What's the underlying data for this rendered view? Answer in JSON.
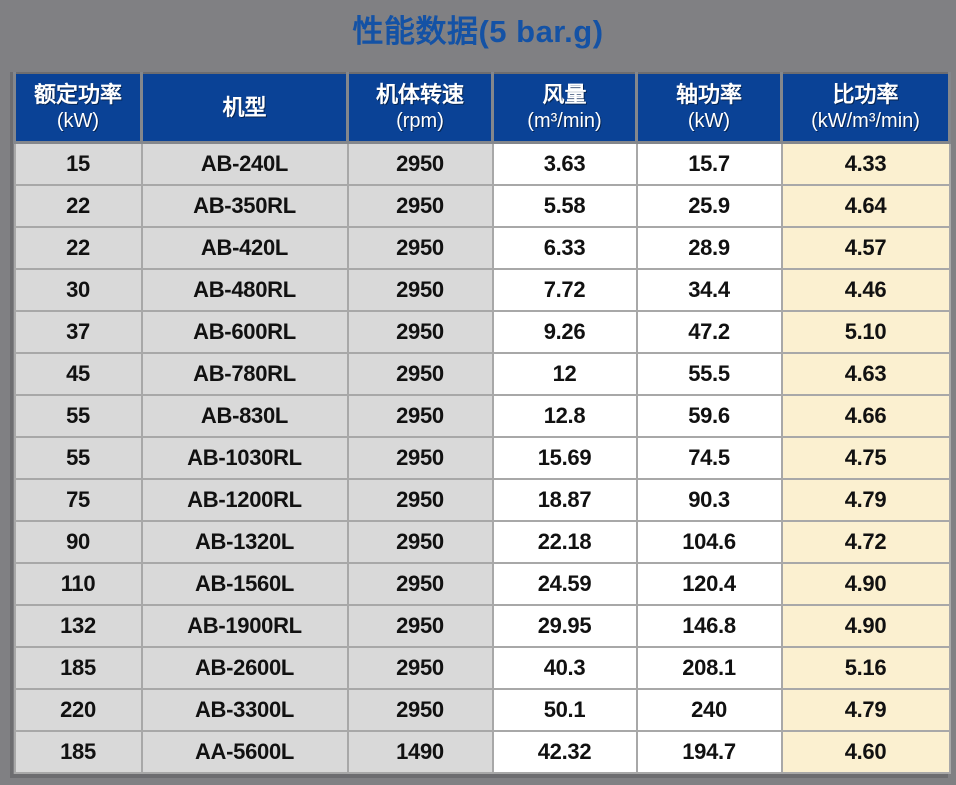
{
  "title": {
    "text": "性能数据(5 bar.g)"
  },
  "colors": {
    "page_bg": "#808083",
    "title_color": "#1452a5",
    "header_bg": "#0a4296",
    "header_text": "#ffffff",
    "gray_cell": "#d9d9d9",
    "white_cell": "#ffffff",
    "highlight_cell": "#fbf0d0",
    "grid_line": "#a8a8a8"
  },
  "table": {
    "columns": [
      {
        "key": "rated-power",
        "title": "额定功率",
        "unit": "(kW)"
      },
      {
        "key": "model",
        "title": "机型",
        "unit": ""
      },
      {
        "key": "speed",
        "title": "机体转速",
        "unit": "(rpm)"
      },
      {
        "key": "air-flow",
        "title": "风量",
        "unit": "(m³/min)"
      },
      {
        "key": "shaft-power",
        "title": "轴功率",
        "unit": "(kW)"
      },
      {
        "key": "specific-power",
        "title": "比功率",
        "unit": "(kW/m³/min)"
      }
    ],
    "rows": [
      [
        "15",
        "AB-240L",
        "2950",
        "3.63",
        "15.7",
        "4.33"
      ],
      [
        "22",
        "AB-350RL",
        "2950",
        "5.58",
        "25.9",
        "4.64"
      ],
      [
        "22",
        "AB-420L",
        "2950",
        "6.33",
        "28.9",
        "4.57"
      ],
      [
        "30",
        "AB-480RL",
        "2950",
        "7.72",
        "34.4",
        "4.46"
      ],
      [
        "37",
        "AB-600RL",
        "2950",
        "9.26",
        "47.2",
        "5.10"
      ],
      [
        "45",
        "AB-780RL",
        "2950",
        "12",
        "55.5",
        "4.63"
      ],
      [
        "55",
        "AB-830L",
        "2950",
        "12.8",
        "59.6",
        "4.66"
      ],
      [
        "55",
        "AB-1030RL",
        "2950",
        "15.69",
        "74.5",
        "4.75"
      ],
      [
        "75",
        "AB-1200RL",
        "2950",
        "18.87",
        "90.3",
        "4.79"
      ],
      [
        "90",
        "AB-1320L",
        "2950",
        "22.18",
        "104.6",
        "4.72"
      ],
      [
        "110",
        "AB-1560L",
        "2950",
        "24.59",
        "120.4",
        "4.90"
      ],
      [
        "132",
        "AB-1900RL",
        "2950",
        "29.95",
        "146.8",
        "4.90"
      ],
      [
        "185",
        "AB-2600L",
        "2950",
        "40.3",
        "208.1",
        "5.16"
      ],
      [
        "220",
        "AB-3300L",
        "2950",
        "50.1",
        "240",
        "4.79"
      ],
      [
        "185",
        "AA-5600L",
        "1490",
        "42.32",
        "194.7",
        "4.60"
      ]
    ]
  }
}
